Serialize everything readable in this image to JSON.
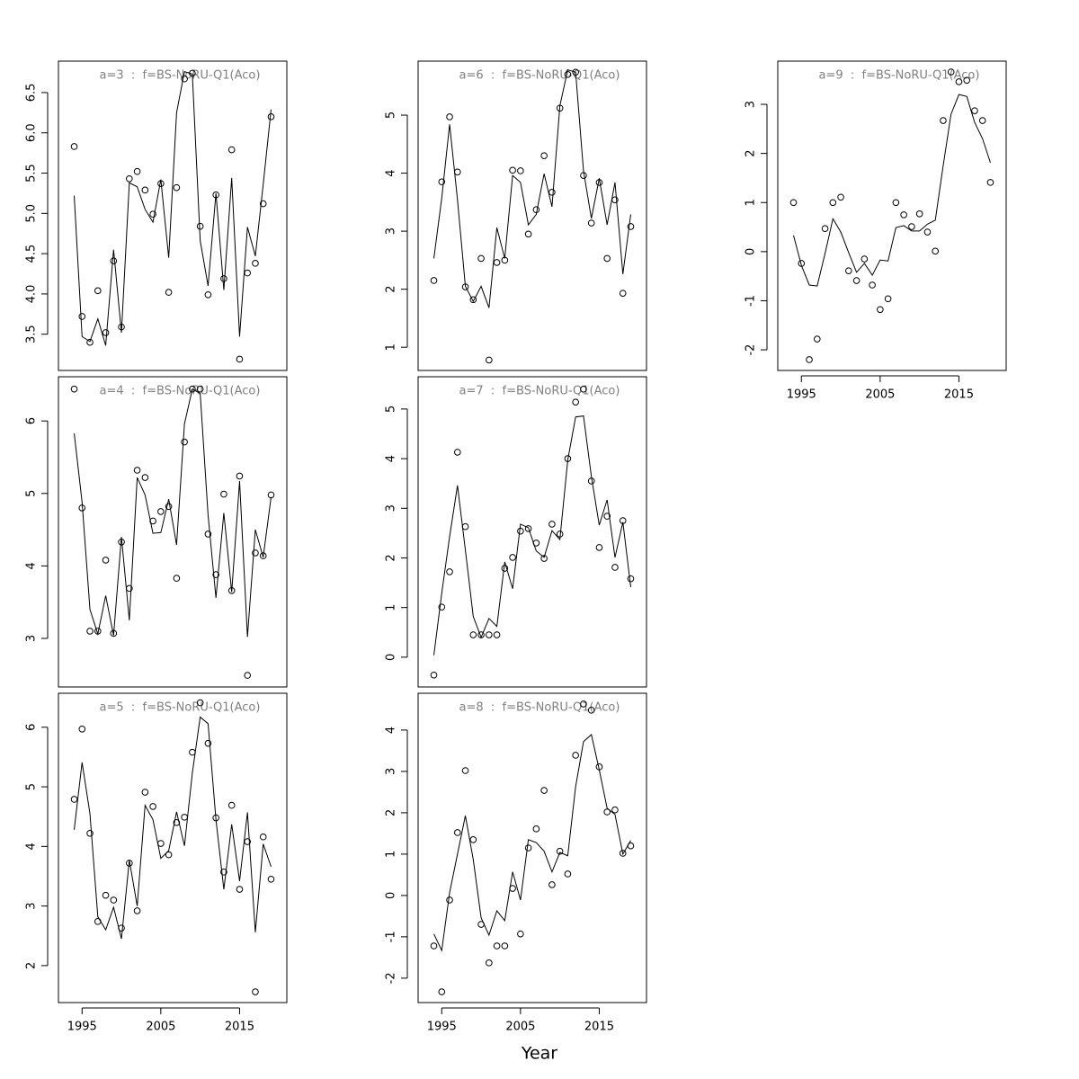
{
  "xlabel": "Year",
  "chart_data": [
    {
      "type": "line",
      "title": "a=3  :  f=BS-NoRU-Q1(Aco)",
      "x": [
        1994,
        1995,
        1996,
        1997,
        1998,
        1999,
        2000,
        2001,
        2002,
        2003,
        2004,
        2005,
        2006,
        2007,
        2008,
        2009,
        2010,
        2011,
        2012,
        2013,
        2014,
        2015,
        2016,
        2017,
        2018,
        2019
      ],
      "series": [
        {
          "mark": "circle",
          "color": "#000000",
          "values": [
            5.83,
            3.72,
            3.4,
            4.04,
            3.52,
            4.41,
            3.59,
            5.43,
            5.52,
            5.29,
            4.99,
            5.37,
            4.02,
            5.32,
            6.67,
            6.74,
            4.84,
            3.99,
            5.23,
            4.19,
            5.79,
            3.19,
            4.26,
            4.38,
            5.12,
            6.2
          ]
        },
        {
          "mark": "line",
          "color": "#000000",
          "values": [
            5.22,
            3.47,
            3.41,
            3.69,
            3.36,
            4.55,
            3.52,
            5.38,
            5.33,
            5.05,
            4.89,
            5.42,
            4.45,
            6.25,
            6.76,
            6.73,
            4.66,
            4.1,
            5.25,
            4.05,
            5.44,
            3.47,
            4.83,
            4.47,
            5.36,
            6.29
          ]
        }
      ],
      "xlim": [
        1992,
        2021
      ],
      "ylim": [
        3.05,
        6.89
      ],
      "yticks": [
        3.5,
        {
          "value": 4,
          "label": "4.0"
        },
        4.5,
        {
          "value": 5,
          "label": "5.0"
        },
        5.5,
        {
          "value": 6,
          "label": "6.0"
        },
        6.5
      ]
    },
    {
      "type": "line",
      "title": "a=4  :  f=BS-NoRU-Q1(Aco)",
      "x": [
        1994,
        1995,
        1996,
        1997,
        1998,
        1999,
        2000,
        2001,
        2002,
        2003,
        2004,
        2005,
        2006,
        2007,
        2008,
        2009,
        2010,
        2011,
        2012,
        2013,
        2014,
        2015,
        2016,
        2017,
        2018,
        2019
      ],
      "series": [
        {
          "mark": "circle",
          "color": "#000000",
          "values": [
            6.44,
            4.8,
            3.1,
            3.1,
            4.08,
            3.07,
            4.33,
            3.69,
            5.32,
            5.22,
            4.62,
            4.75,
            4.82,
            3.83,
            5.71,
            6.44,
            6.44,
            4.44,
            3.88,
            4.99,
            3.66,
            5.24,
            2.49,
            4.18,
            4.14,
            4.98
          ]
        },
        {
          "mark": "line",
          "color": "#000000",
          "values": [
            5.83,
            4.88,
            3.4,
            3.06,
            3.59,
            3.04,
            4.4,
            3.25,
            5.22,
            4.98,
            4.45,
            4.46,
            4.92,
            4.29,
            5.96,
            6.44,
            6.38,
            4.7,
            3.56,
            4.73,
            3.64,
            5.17,
            3.02,
            4.5,
            4.12,
            4.95
          ]
        }
      ],
      "xlim": [
        1992,
        2021
      ],
      "ylim": [
        2.33,
        6.61
      ],
      "yticks": [
        3,
        4,
        5,
        6
      ]
    },
    {
      "type": "line",
      "title": "a=5  :  f=BS-NoRU-Q1(Aco)",
      "x": [
        1994,
        1995,
        1996,
        1997,
        1998,
        1999,
        2000,
        2001,
        2002,
        2003,
        2004,
        2005,
        2006,
        2007,
        2008,
        2009,
        2010,
        2011,
        2012,
        2013,
        2014,
        2015,
        2016,
        2017,
        2018,
        2019
      ],
      "series": [
        {
          "mark": "circle",
          "color": "#000000",
          "values": [
            4.79,
            5.97,
            4.22,
            2.74,
            3.18,
            3.1,
            2.63,
            3.72,
            2.92,
            4.91,
            4.67,
            4.05,
            3.86,
            4.4,
            4.49,
            5.58,
            6.41,
            5.73,
            4.48,
            3.57,
            4.69,
            3.28,
            4.08,
            1.56,
            4.16,
            3.45
          ]
        },
        {
          "mark": "line",
          "color": "#000000",
          "values": [
            4.28,
            5.41,
            4.55,
            2.82,
            2.6,
            2.98,
            2.45,
            3.77,
            3.0,
            4.69,
            4.45,
            3.8,
            3.93,
            4.58,
            4.01,
            5.23,
            6.17,
            6.06,
            4.45,
            3.28,
            4.37,
            3.42,
            4.57,
            2.56,
            4.04,
            3.66
          ]
        }
      ],
      "xlim": [
        1992,
        2021
      ],
      "ylim": [
        1.38,
        6.57
      ],
      "yticks": [
        2,
        3,
        4,
        5,
        6
      ],
      "xticks": [
        1995,
        2005,
        2015
      ]
    },
    {
      "type": "line",
      "title": "a=6  :  f=BS-NoRU-Q1(Aco)",
      "x": [
        1994,
        1995,
        1996,
        1997,
        1998,
        1999,
        2000,
        2001,
        2002,
        2003,
        2004,
        2005,
        2006,
        2007,
        2008,
        2009,
        2010,
        2011,
        2012,
        2013,
        2014,
        2015,
        2016,
        2017,
        2018,
        2019
      ],
      "series": [
        {
          "mark": "circle",
          "color": "#000000",
          "values": [
            2.15,
            3.85,
            4.97,
            4.02,
            2.04,
            1.82,
            2.53,
            0.78,
            2.46,
            2.5,
            4.05,
            4.04,
            2.95,
            3.37,
            4.3,
            3.67,
            5.12,
            5.7,
            5.74,
            3.96,
            3.14,
            3.84,
            2.53,
            3.54,
            1.93,
            3.08
          ]
        },
        {
          "mark": "line",
          "color": "#000000",
          "values": [
            2.53,
            3.57,
            4.84,
            3.54,
            2.05,
            1.79,
            2.05,
            1.68,
            3.06,
            2.53,
            3.96,
            3.84,
            3.11,
            3.29,
            3.99,
            3.42,
            5.16,
            5.78,
            5.74,
            4.04,
            3.22,
            3.91,
            3.11,
            3.84,
            2.26,
            3.29
          ]
        }
      ],
      "xlim": [
        1992,
        2021
      ],
      "ylim": [
        0.6,
        5.93
      ],
      "yticks": [
        1,
        2,
        3,
        4,
        5
      ]
    },
    {
      "type": "line",
      "title": "a=7  :  f=BS-NoRU-Q1(Aco)",
      "x": [
        1994,
        1995,
        1996,
        1997,
        1998,
        1999,
        2000,
        2001,
        2002,
        2003,
        2004,
        2005,
        2006,
        2007,
        2008,
        2009,
        2010,
        2011,
        2012,
        2013,
        2014,
        2015,
        2016,
        2017,
        2018,
        2019
      ],
      "series": [
        {
          "mark": "circle",
          "color": "#000000",
          "values": [
            -0.36,
            1.01,
            1.72,
            4.13,
            2.63,
            0.45,
            0.45,
            0.45,
            0.45,
            1.79,
            2.01,
            2.54,
            2.59,
            2.3,
            1.99,
            2.68,
            2.48,
            4.0,
            5.14,
            5.4,
            3.55,
            2.21,
            2.84,
            1.81,
            2.75,
            1.58
          ]
        },
        {
          "mark": "line",
          "color": "#000000",
          "values": [
            0.04,
            1.29,
            2.43,
            3.46,
            2.16,
            0.82,
            0.4,
            0.78,
            0.62,
            1.92,
            1.38,
            2.68,
            2.61,
            2.14,
            2.01,
            2.55,
            2.37,
            3.97,
            4.84,
            4.86,
            3.64,
            2.66,
            3.17,
            2.01,
            2.72,
            1.41
          ]
        }
      ],
      "xlim": [
        1992,
        2021
      ],
      "ylim": [
        -0.6,
        5.65
      ],
      "yticks": [
        0,
        1,
        2,
        3,
        4,
        5
      ]
    },
    {
      "type": "line",
      "title": "a=8  :  f=BS-NoRU-Q1(Aco)",
      "x": [
        1994,
        1995,
        1996,
        1997,
        1998,
        1999,
        2000,
        2001,
        2002,
        2003,
        2004,
        2005,
        2006,
        2007,
        2008,
        2009,
        2010,
        2011,
        2012,
        2013,
        2014,
        2015,
        2016,
        2017,
        2018,
        2019
      ],
      "series": [
        {
          "mark": "circle",
          "color": "#000000",
          "values": [
            -1.22,
            -2.33,
            -0.11,
            1.52,
            3.02,
            1.35,
            -0.7,
            -1.63,
            -1.22,
            -1.22,
            0.17,
            -0.93,
            1.15,
            1.61,
            2.54,
            0.26,
            1.07,
            0.52,
            3.39,
            4.63,
            4.48,
            3.11,
            2.02,
            2.07,
            1.02,
            1.2
          ]
        },
        {
          "mark": "line",
          "color": "#000000",
          "values": [
            -0.93,
            -1.33,
            0.07,
            1.0,
            1.93,
            0.87,
            -0.54,
            -0.96,
            -0.37,
            -0.61,
            0.57,
            -0.11,
            1.35,
            1.28,
            1.07,
            0.57,
            1.04,
            0.96,
            2.63,
            3.72,
            3.89,
            3.04,
            2.11,
            1.96,
            1.0,
            1.33
          ]
        }
      ],
      "xlim": [
        1992,
        2021
      ],
      "ylim": [
        -2.59,
        4.89
      ],
      "yticks": [
        -2,
        -1,
        0,
        1,
        2,
        3,
        4
      ],
      "xticks": [
        1995,
        2005,
        2015
      ]
    },
    {
      "type": "line",
      "title": "a=9  :  f=BS-NoRU-Q1(Aco)",
      "x": [
        1994,
        1995,
        1996,
        1997,
        1998,
        1999,
        2000,
        2001,
        2002,
        2003,
        2004,
        2005,
        2006,
        2007,
        2008,
        2009,
        2010,
        2011,
        2012,
        2013,
        2014,
        2015,
        2016,
        2017,
        2018,
        2019
      ],
      "series": [
        {
          "mark": "circle",
          "color": "#000000",
          "values": [
            1.0,
            -0.24,
            -2.2,
            -1.78,
            0.47,
            1.0,
            1.11,
            -0.39,
            -0.59,
            -0.15,
            -0.68,
            -1.18,
            -0.96,
            1.0,
            0.75,
            0.51,
            0.77,
            0.4,
            0.01,
            2.67,
            3.66,
            3.46,
            3.49,
            2.87,
            2.67,
            1.41
          ]
        },
        {
          "mark": "line",
          "color": "#000000",
          "values": [
            0.33,
            -0.28,
            -0.68,
            -0.7,
            -0.04,
            0.67,
            0.4,
            -0.02,
            -0.42,
            -0.24,
            -0.48,
            -0.17,
            -0.19,
            0.49,
            0.53,
            0.42,
            0.42,
            0.56,
            0.64,
            1.75,
            2.8,
            3.2,
            3.16,
            2.63,
            2.3,
            1.81
          ]
        }
      ],
      "xlim": [
        1992,
        2021
      ],
      "ylim": [
        -2.42,
        3.88
      ],
      "yticks": [
        -2,
        -1,
        0,
        1,
        2,
        3
      ],
      "xticks": [
        1995,
        2005,
        2015
      ]
    }
  ]
}
